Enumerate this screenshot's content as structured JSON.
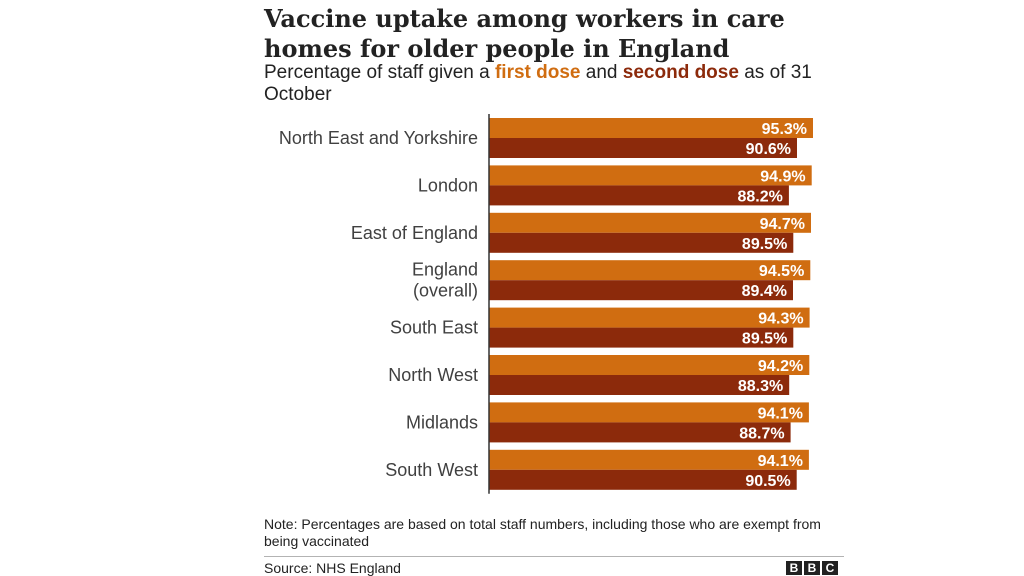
{
  "title": "Vaccine uptake among workers in care homes for older people in England",
  "subtitle": {
    "prefix": "Percentage of staff given a",
    "first_label": "first dose",
    "and": "and",
    "second_label": "second dose",
    "suffix": "as of 31 October"
  },
  "colors": {
    "first": "#d06d11",
    "second": "#8c2a0b",
    "axis": "#333333"
  },
  "chart_data": {
    "type": "bar",
    "orientation": "horizontal",
    "categories": [
      "North East and Yorkshire",
      "London",
      "East of England",
      "England (overall)",
      "South East",
      "North West",
      "Midlands",
      "South West"
    ],
    "category_lines": [
      [
        "North East and Yorkshire"
      ],
      [
        "London"
      ],
      [
        "East of England"
      ],
      [
        "England",
        "(overall)"
      ],
      [
        "South East"
      ],
      [
        "North West"
      ],
      [
        "Midlands"
      ],
      [
        "South West"
      ]
    ],
    "series": [
      {
        "name": "first dose",
        "values": [
          95.3,
          94.9,
          94.7,
          94.5,
          94.3,
          94.2,
          94.1,
          94.1
        ],
        "labels": [
          "95.3%",
          "94.9%",
          "94.7%",
          "94.5%",
          "94.3%",
          "94.2%",
          "94.1%",
          "94.1%"
        ]
      },
      {
        "name": "second dose",
        "values": [
          90.6,
          88.2,
          89.5,
          89.4,
          89.5,
          88.3,
          88.7,
          90.5
        ],
        "labels": [
          "90.6%",
          "88.2%",
          "89.5%",
          "89.4%",
          "89.5%",
          "88.3%",
          "88.7%",
          "90.5%"
        ]
      }
    ],
    "xlim": [
      0,
      100
    ],
    "grid": false,
    "legend": "in-subtitle"
  },
  "note": "Note: Percentages are based on total staff numbers, including those who are exempt from being vaccinated",
  "source": "Source: NHS England",
  "logo": [
    "B",
    "B",
    "C"
  ]
}
